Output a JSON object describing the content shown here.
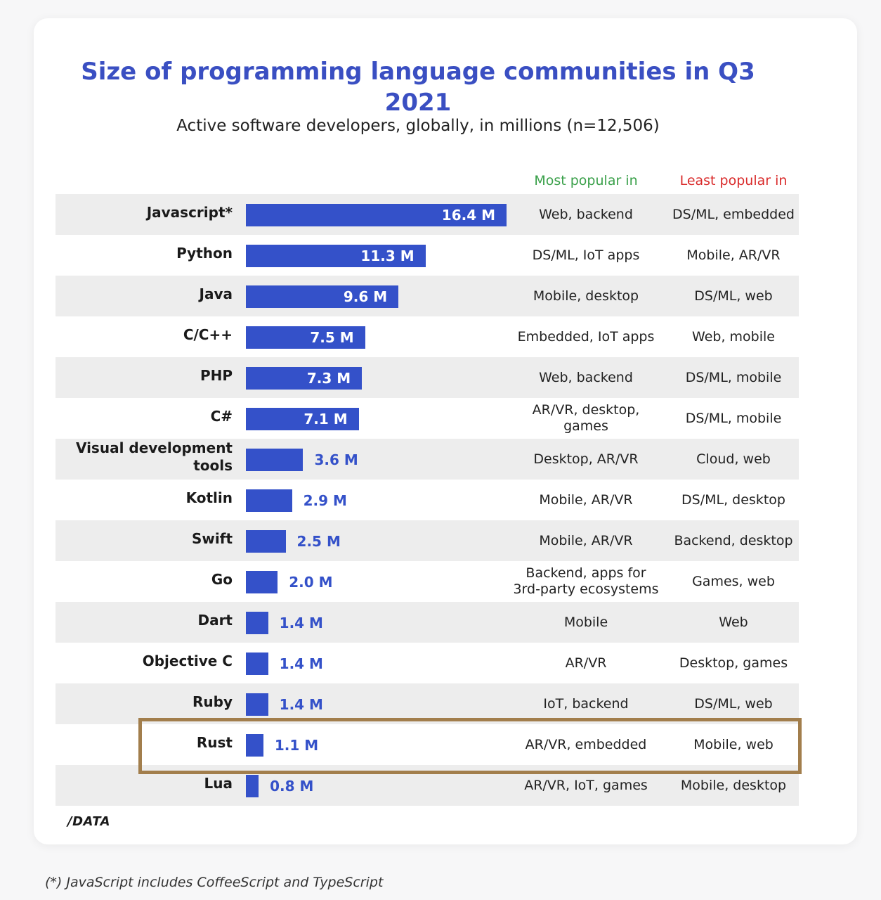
{
  "chart_data": {
    "type": "bar",
    "orientation": "horizontal",
    "title": "Size of programming language communities in Q3 2021",
    "subtitle": "Active software developers, globally, in millions (n=12,506)",
    "xlim": [
      0,
      16.4
    ],
    "categories": [
      "Javascript*",
      "Python",
      "Java",
      "C/C++",
      "PHP",
      "C#",
      "Visual development tools",
      "Kotlin",
      "Swift",
      "Go",
      "Dart",
      "Objective C",
      "Ruby",
      "Rust",
      "Lua"
    ],
    "values": [
      16.4,
      11.3,
      9.6,
      7.5,
      7.3,
      7.1,
      3.6,
      2.9,
      2.5,
      2.0,
      1.4,
      1.4,
      1.4,
      1.1,
      0.8
    ],
    "value_labels": [
      "16.4 M",
      "11.3 M",
      "9.6 M",
      "7.5 M",
      "7.3 M",
      "7.1 M",
      "3.6 M",
      "2.9 M",
      "2.5 M",
      "2.0 M",
      "1.4 M",
      "1.4 M",
      "1.4 M",
      "1.1 M",
      "0.8 M"
    ],
    "highlighted_category": "Rust",
    "bar_color": "#3451c9"
  },
  "table": {
    "most_header": "Most popular in",
    "least_header": "Least popular in",
    "most_color": "#3aa04a",
    "least_color": "#d92b2b",
    "most": [
      "Web, backend",
      "DS/ML, IoT apps",
      "Mobile, desktop",
      "Embedded, IoT apps",
      "Web, backend",
      "AR/VR, desktop, games",
      "Desktop, AR/VR",
      "Mobile, AR/VR",
      "Mobile, AR/VR",
      "Backend, apps for 3rd-party ecosystems",
      "Mobile",
      "AR/VR",
      "IoT, backend",
      "AR/VR, embedded",
      "AR/VR, IoT, games"
    ],
    "least": [
      "DS/ML, embedded",
      "Mobile, AR/VR",
      "DS/ML, web",
      "Web, mobile",
      "DS/ML, mobile",
      "DS/ML, mobile",
      "Cloud, web",
      "DS/ML, desktop",
      "Backend, desktop",
      "Games, web",
      "Web",
      "Desktop, games",
      "DS/ML, web",
      "Mobile, web",
      "Mobile, desktop"
    ]
  },
  "logo_text": "/DATA",
  "footnote": "(*) JavaScript includes CoffeeScript and TypeScript"
}
